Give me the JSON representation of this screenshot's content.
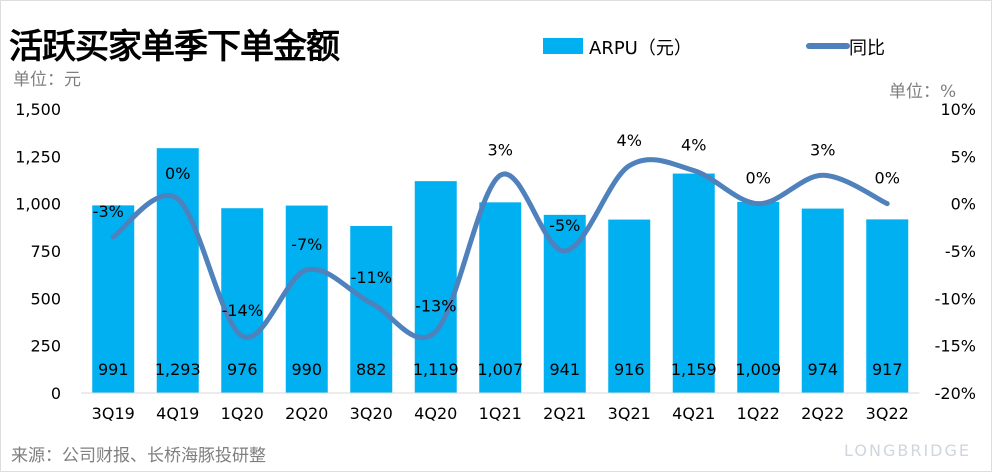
{
  "title": "活跃买家单季下单金额",
  "left_unit": "单位：元",
  "right_unit": "单位：%",
  "footer": "来源：公司财报、长桥海豚投研整",
  "brand": "LONGBRIDGE",
  "chart_data": {
    "type": "bar+line",
    "title": "活跃买家单季下单金额",
    "categories": [
      "3Q19",
      "4Q19",
      "1Q20",
      "2Q20",
      "3Q20",
      "4Q20",
      "1Q21",
      "2Q21",
      "3Q21",
      "4Q21",
      "1Q22",
      "2Q22",
      "3Q22"
    ],
    "series": [
      {
        "name": "ARPU（元）",
        "type": "bar",
        "axis": "left",
        "color": "#00b0f0",
        "values": [
          991,
          1293,
          976,
          990,
          882,
          1119,
          1007,
          941,
          916,
          1159,
          1009,
          974,
          917
        ],
        "labels": [
          "991",
          "1,293",
          "976",
          "990",
          "882",
          "1,119",
          "1,007",
          "941",
          "916",
          "1,159",
          "1,009",
          "974",
          "917"
        ]
      },
      {
        "name": "同比",
        "type": "line",
        "axis": "right",
        "color": "#4f81bd",
        "values": [
          -3.5,
          0.5,
          -14,
          -7,
          -10.5,
          -13.5,
          3,
          -5,
          4,
          3.5,
          0,
          3,
          0
        ],
        "labels": [
          "-3%",
          "0%",
          "-14%",
          "-7%",
          "-11%",
          "-13%",
          "3%",
          "-5%",
          "4%",
          "4%",
          "0%",
          "3%",
          "0%"
        ]
      }
    ],
    "left_axis": {
      "ylim": [
        0,
        1500
      ],
      "ticks": [
        0,
        250,
        500,
        750,
        1000,
        1250,
        1500
      ],
      "tick_labels": [
        "0",
        "250",
        "500",
        "750",
        "1,000",
        "1,250",
        "1,500"
      ]
    },
    "right_axis": {
      "ylim": [
        -20,
        10
      ],
      "ticks": [
        -20,
        -15,
        -10,
        -5,
        0,
        5,
        10
      ],
      "tick_labels": [
        "-20%",
        "-15%",
        "-10%",
        "-5%",
        "0%",
        "5%",
        "10%"
      ]
    },
    "legend": "top-right",
    "grid": false
  }
}
